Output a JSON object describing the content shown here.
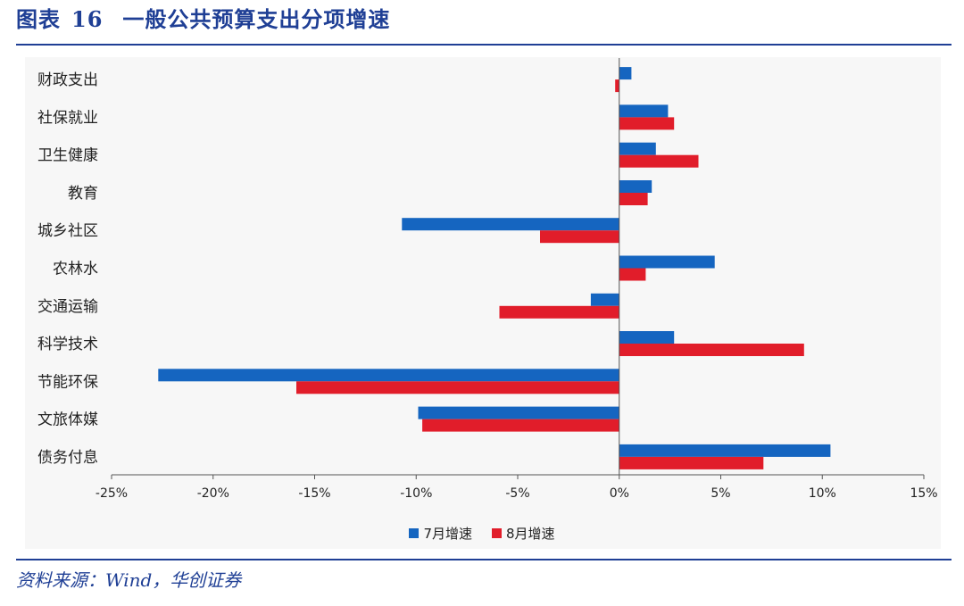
{
  "figure": {
    "label": "图表",
    "number": "16",
    "title": "一般公共预算支出分项增速"
  },
  "source": "资料来源：Wind，华创证券",
  "colors": {
    "series_jul": "#1565c0",
    "series_aug": "#e11d2a",
    "brand": "#1f3f95"
  },
  "chart_data": {
    "type": "bar",
    "orientation": "horizontal",
    "categories": [
      "财政支出",
      "社保就业",
      "卫生健康",
      "教育",
      "城乡社区",
      "农林水",
      "交通运输",
      "科学技术",
      "节能环保",
      "文旅体媒",
      "债务付息"
    ],
    "series": [
      {
        "name": "7月增速",
        "values": [
          0.6,
          2.4,
          1.8,
          1.6,
          -10.7,
          4.7,
          -1.4,
          2.7,
          -22.7,
          -9.9,
          10.4
        ]
      },
      {
        "name": "8月增速",
        "values": [
          -0.2,
          2.7,
          3.9,
          1.4,
          -3.9,
          1.3,
          -5.9,
          9.1,
          -15.9,
          -9.7,
          7.1
        ]
      }
    ],
    "xlim": [
      -25,
      15
    ],
    "xticks": [
      "-25%",
      "-20%",
      "-15%",
      "-10%",
      "-5%",
      "0%",
      "5%",
      "10%",
      "15%"
    ],
    "unit": "%",
    "legend_position": "bottom",
    "grid": false
  }
}
